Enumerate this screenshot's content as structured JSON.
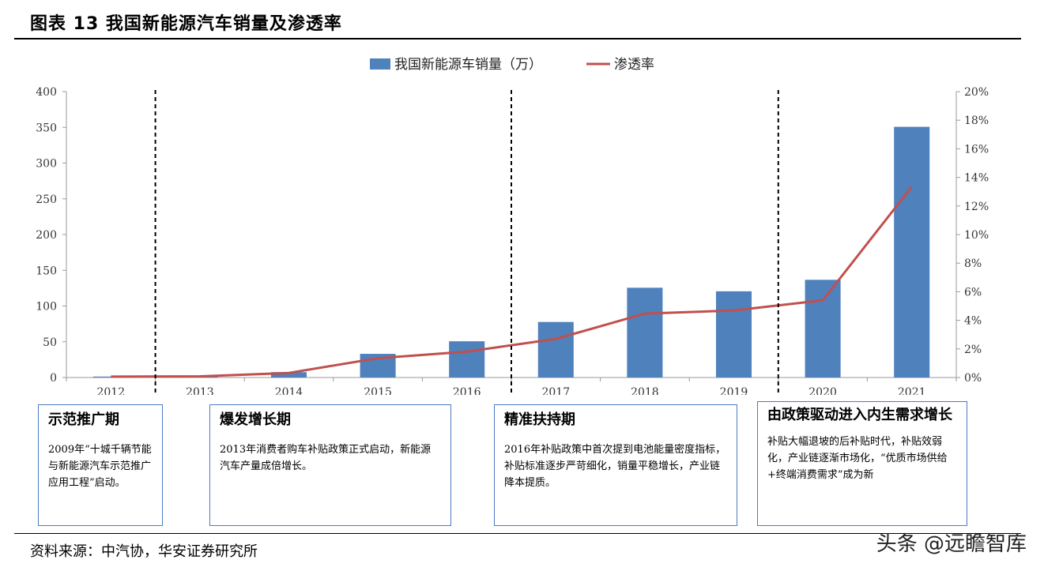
{
  "header": {
    "title": "图表 13 我国新能源汽车销量及渗透率"
  },
  "chart_data": {
    "type": "bar+line",
    "categories": [
      "2012",
      "2013",
      "2014",
      "2015",
      "2016",
      "2017",
      "2018",
      "2019",
      "2020",
      "2021"
    ],
    "series": [
      {
        "name": "我国新能源车销量（万）",
        "type": "bar",
        "axis": "left",
        "color": "#4f81bd",
        "values": [
          1.3,
          1.8,
          7.5,
          33.1,
          50.7,
          77.7,
          125.6,
          120.6,
          136.7,
          350.7
        ]
      },
      {
        "name": "渗透率",
        "type": "line",
        "axis": "right",
        "color": "#c0504d",
        "values": [
          0.0006,
          0.0008,
          0.0032,
          0.0135,
          0.0181,
          0.027,
          0.0447,
          0.0469,
          0.054,
          0.1335
        ]
      }
    ],
    "yleft": {
      "lim": [
        0,
        400
      ],
      "ticks": [
        "0",
        "50",
        "100",
        "150",
        "200",
        "250",
        "300",
        "350",
        "400"
      ]
    },
    "yright": {
      "lim": [
        0,
        0.2
      ],
      "ticks": [
        "0%",
        "2%",
        "4%",
        "6%",
        "8%",
        "10%",
        "12%",
        "14%",
        "16%",
        "18%",
        "20%"
      ]
    },
    "phase_dividers_after": [
      "2012",
      "2016",
      "2019"
    ],
    "legend_position": "top-center",
    "grid": false
  },
  "phases": [
    {
      "title": "示范推广期",
      "text": "2009年“十城千辆节能与新能源汽车示范推广应用工程”启动。"
    },
    {
      "title": "爆发增长期",
      "text": "2013年消费者购车补贴政策正式启动，新能源汽车产量成倍增长。"
    },
    {
      "title": "精准扶持期",
      "text": "2016年补贴政策中首次提到电池能量密度指标，补贴标准逐步严苛细化，销量平稳增长，产业链降本提质。"
    },
    {
      "title": "由政策驱动进入内生需求增长",
      "text": "补贴大幅退坡的后补贴时代，补贴效弱化，产业链逐渐市场化，“优质市场供给+终端消费需求”成为新"
    }
  ],
  "footer": {
    "source": "资料来源：中汽协，华安证券研究所",
    "watermark": "头条 @远瞻智库"
  }
}
